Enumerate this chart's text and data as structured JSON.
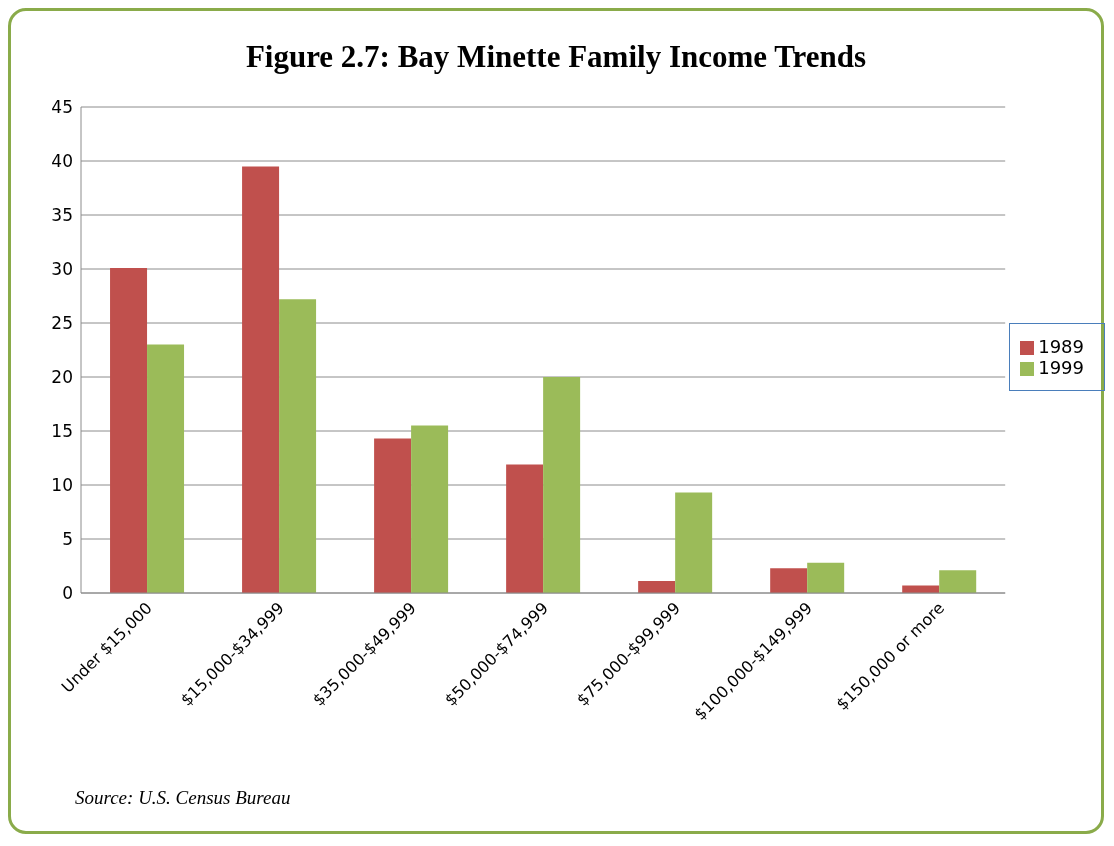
{
  "chart_data": {
    "type": "bar",
    "title": "Figure 2.7: Bay Minette Family Income Trends",
    "categories": [
      "Under $15,000",
      "$15,000-$34,999",
      "$35,000-$49,999",
      "$50,000-$74,999",
      "$75,000-$99,999",
      "$100,000-$149,999",
      "$150,000 or more"
    ],
    "series": [
      {
        "name": "1989",
        "color": "#c0504d",
        "values": [
          30.1,
          39.5,
          14.3,
          11.9,
          1.1,
          2.3,
          0.7
        ]
      },
      {
        "name": "1999",
        "color": "#9bbb59",
        "values": [
          23.0,
          27.2,
          15.5,
          20.0,
          9.3,
          2.8,
          2.1
        ]
      }
    ],
    "ylim": [
      0,
      45
    ],
    "yticks": [
      0,
      5,
      10,
      15,
      20,
      25,
      30,
      35,
      40,
      45
    ],
    "grid": "y",
    "legend": "right",
    "annotations": [
      "Source: U.S. Census Bureau"
    ]
  }
}
